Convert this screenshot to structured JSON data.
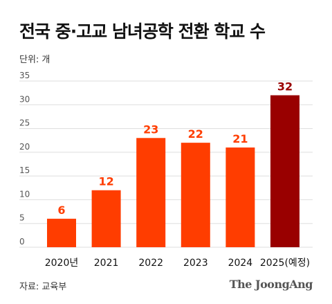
{
  "title": "전국 중·고교 남녀공학 전환 학교 수",
  "unit_label": "단위: 개",
  "source_label": "자료: 교육부",
  "logo_text": "The JoongAng",
  "chart_data": {
    "type": "bar",
    "categories": [
      "2020년",
      "2021",
      "2022",
      "2023",
      "2024",
      "2025(예정)"
    ],
    "values": [
      6,
      12,
      23,
      22,
      21,
      32
    ],
    "ylim": [
      0,
      35
    ],
    "yticks": [
      0,
      5,
      10,
      15,
      20,
      25,
      30,
      35
    ],
    "grid": true,
    "colors": {
      "bar": "#ff3d00",
      "bar_highlight": "#990000",
      "label": "#ff3d00",
      "label_highlight": "#990000",
      "grid": "#dddddd"
    },
    "highlight_index": 5
  }
}
